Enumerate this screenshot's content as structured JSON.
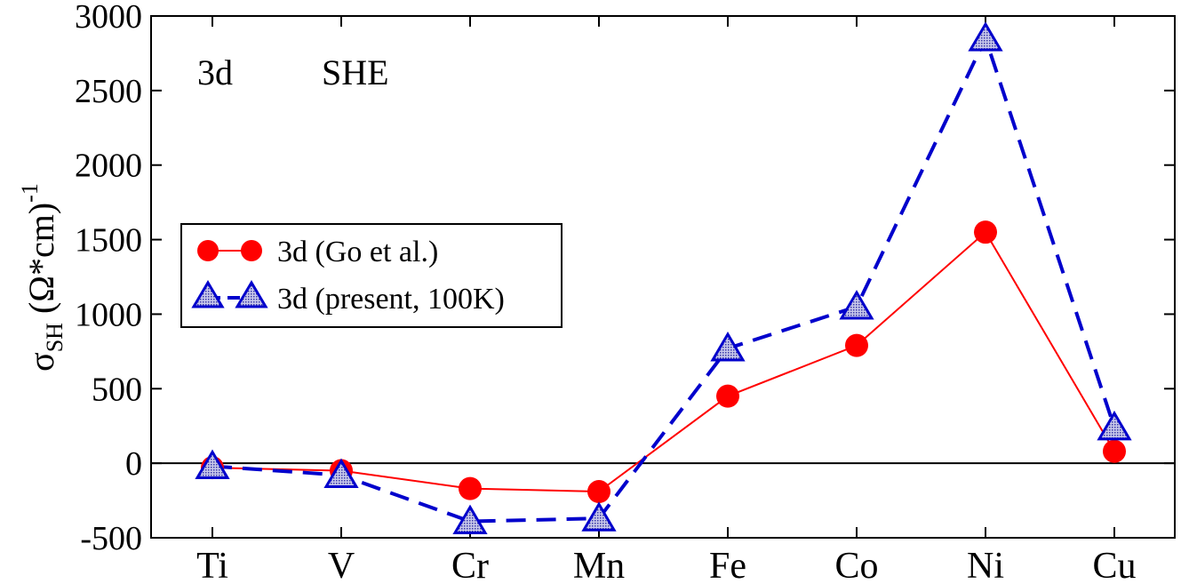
{
  "chart_data": {
    "type": "line",
    "title": "",
    "annotations": [
      "3d",
      "SHE"
    ],
    "ylabel": {
      "symbol": "σ",
      "subscript": "SH",
      "unit": " (Ω*cm)",
      "superscript": "-1"
    },
    "xlabel": "",
    "categories": [
      "Ti",
      "V",
      "Cr",
      "Mn",
      "Fe",
      "Co",
      "Ni",
      "Cu"
    ],
    "ylim": [
      -500,
      3000
    ],
    "yticks": [
      -500,
      0,
      500,
      1000,
      1500,
      2000,
      2500,
      3000
    ],
    "ytick_labels": [
      "-500",
      "0",
      "500",
      "1000",
      "1500",
      "2000",
      "2500",
      "3000"
    ],
    "zero_line": true,
    "legend_position": "middle-left",
    "series": [
      {
        "name": "3d (Go et al.)",
        "color": "#ff0000",
        "marker": "circle",
        "line": "solid",
        "values": [
          -30,
          -50,
          -170,
          -190,
          450,
          790,
          1550,
          80
        ]
      },
      {
        "name": "3d (present, 100K)",
        "color": "#0000cc",
        "marker": "triangle",
        "line": "dashed",
        "values": [
          -20,
          -80,
          -390,
          -370,
          770,
          1050,
          2850,
          240
        ]
      }
    ]
  }
}
